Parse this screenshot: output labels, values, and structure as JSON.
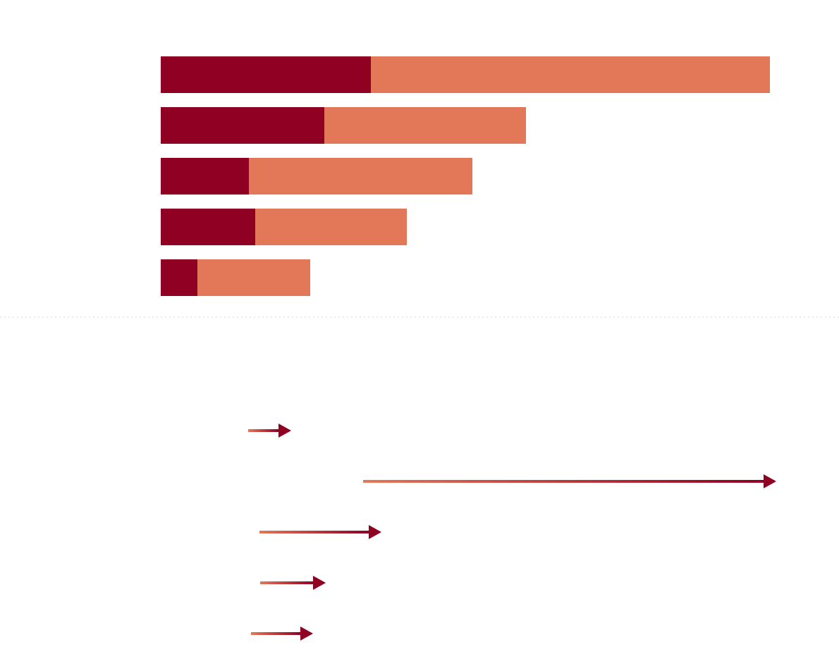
{
  "colors": {
    "dark_segment": "#8f0022",
    "light_segment": "#e37858",
    "arrow_start": "#e37858",
    "arrow_end": "#8f0022",
    "divider": "#d6d6d6"
  },
  "chart_data": [
    {
      "type": "bar",
      "orientation": "horizontal",
      "stacked": true,
      "series": [
        {
          "values": [
            298,
            232,
            125,
            134,
            52
          ]
        },
        {
          "values": [
            566,
            286,
            317,
            215,
            160
          ]
        }
      ],
      "totals": [
        864,
        518,
        442,
        349,
        212
      ],
      "xlim": [
        0,
        864
      ],
      "grid": false,
      "legend": "none"
    },
    {
      "type": "line",
      "subtype": "arrow",
      "arrows": [
        {
          "start": 124,
          "end": 185
        },
        {
          "start": 287,
          "end": 873
        },
        {
          "start": 140,
          "end": 313
        },
        {
          "start": 141,
          "end": 234
        },
        {
          "start": 128,
          "end": 216
        }
      ],
      "xlim": [
        0,
        864
      ],
      "grid": false,
      "legend": "none"
    }
  ]
}
